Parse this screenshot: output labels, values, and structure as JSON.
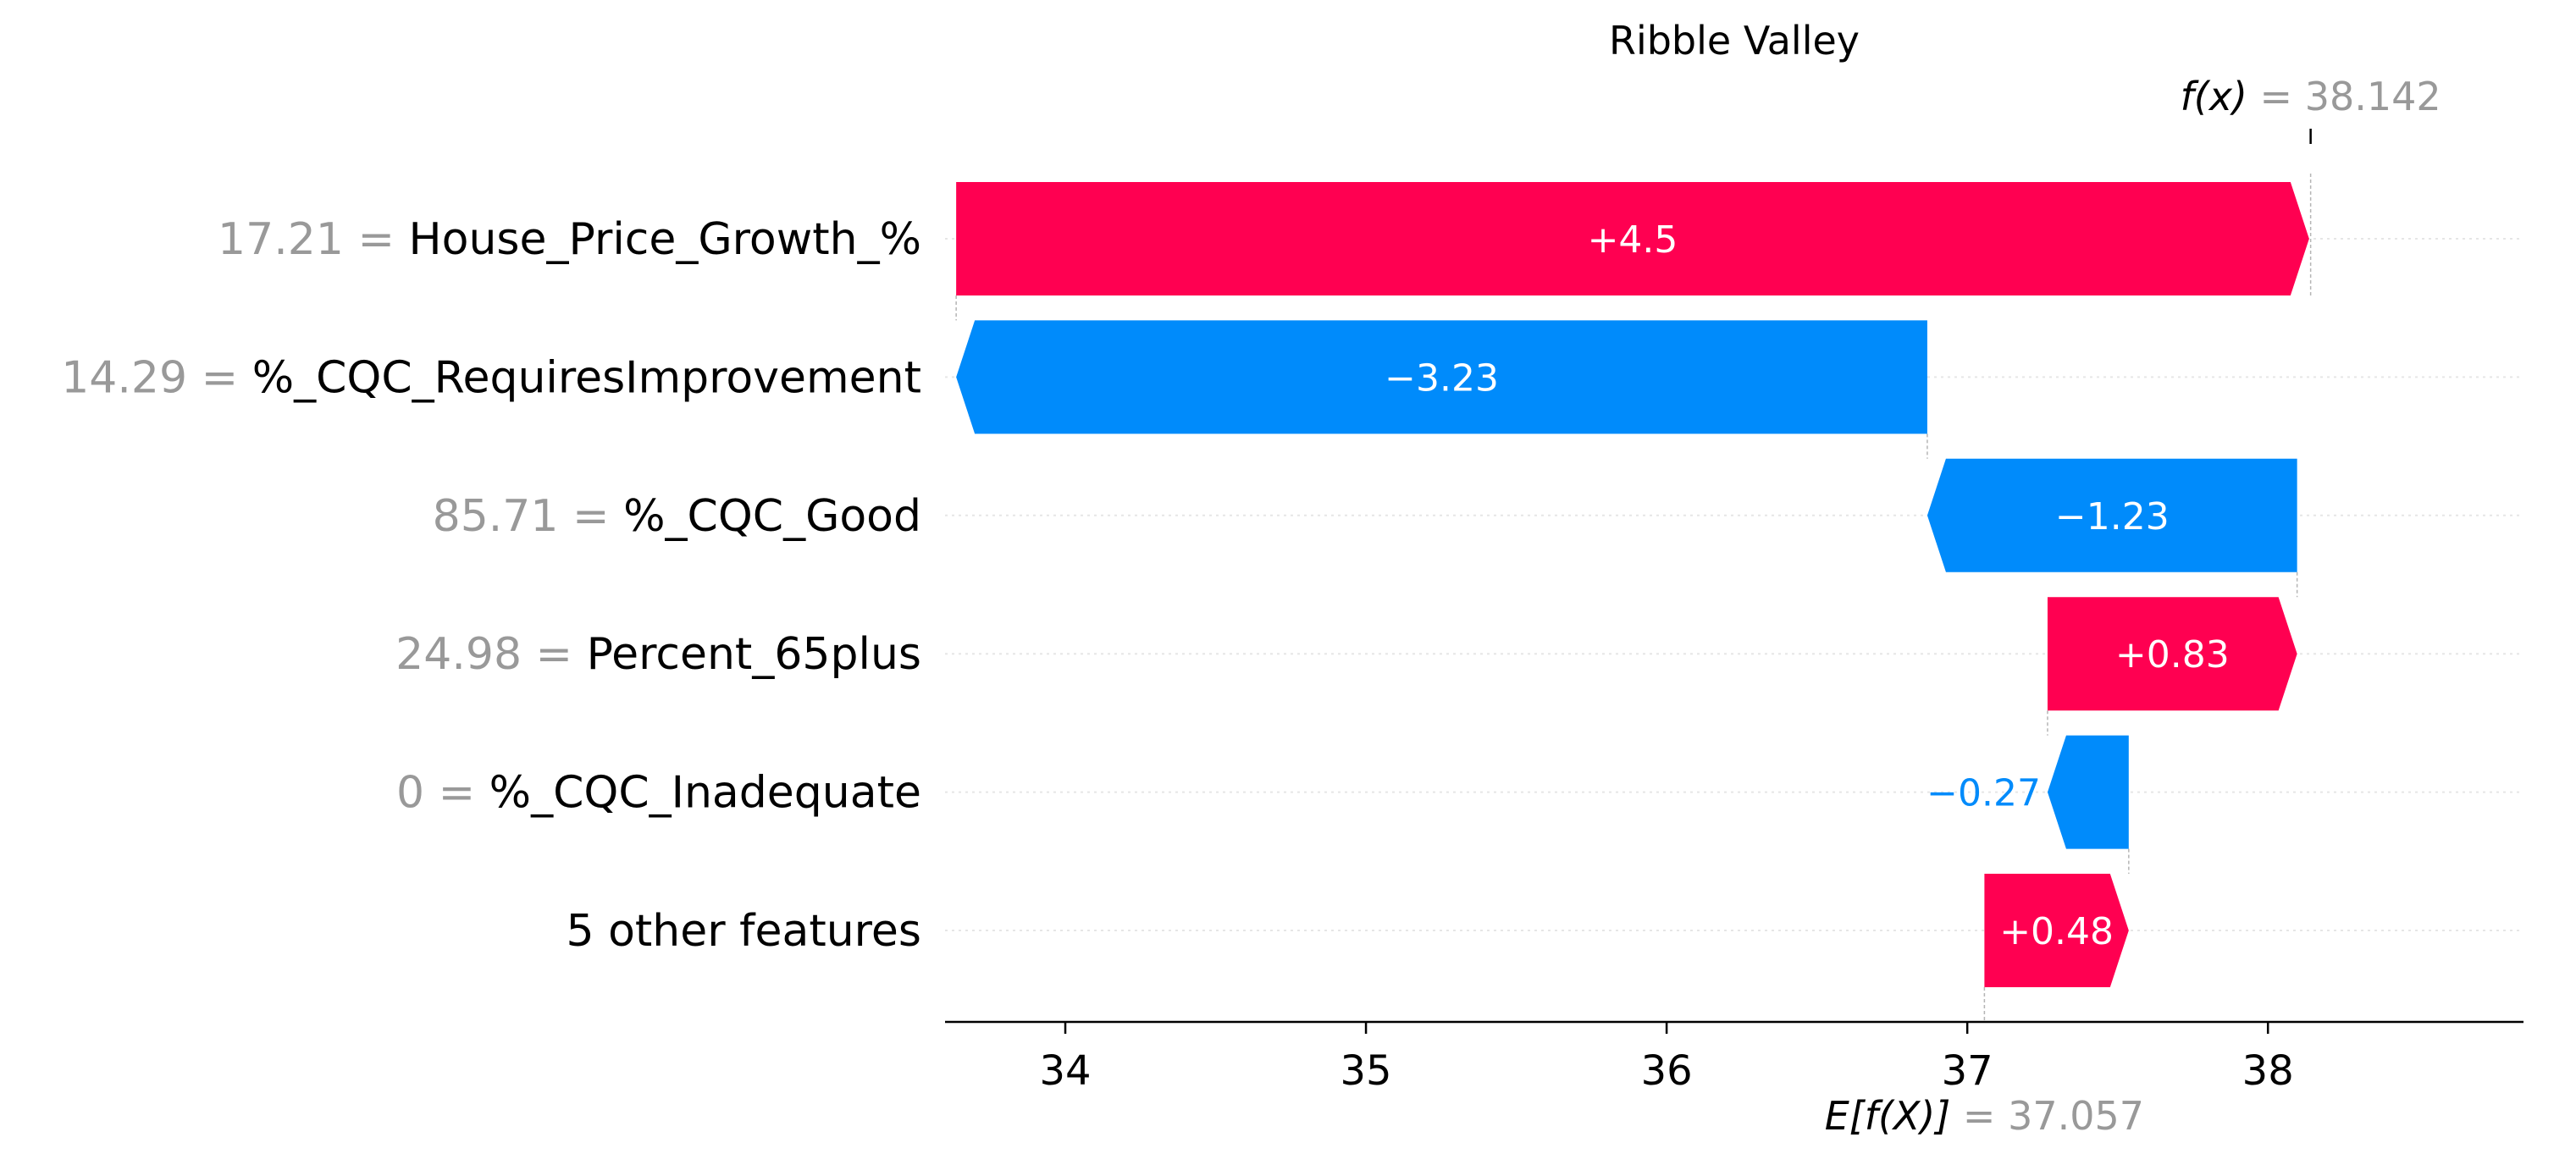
{
  "chart_data": {
    "type": "waterfall",
    "title": "Ribble Valley",
    "base_value": 37.057,
    "output_value": 38.142,
    "base_label": "E[f(X)]",
    "base_value_text": "= 37.057",
    "output_label": "f(x)",
    "output_value_text": "= 38.142",
    "xlim": [
      33.6,
      38.85
    ],
    "xticks": [
      34,
      35,
      36,
      37,
      38
    ],
    "features": [
      {
        "value": "17.21",
        "name": "House_Price_Growth_%",
        "contribution": 4.5,
        "label": "+4.5"
      },
      {
        "value": "14.29",
        "name": "%_CQC_RequiresImprovement",
        "contribution": -3.23,
        "label": "−3.23"
      },
      {
        "value": "85.71",
        "name": "%_CQC_Good",
        "contribution": -1.23,
        "label": "−1.23"
      },
      {
        "value": "24.98",
        "name": "Percent_65plus",
        "contribution": 0.83,
        "label": "+0.83"
      },
      {
        "value": "0",
        "name": "%_CQC_Inadequate",
        "contribution": -0.27,
        "label": "−0.27"
      },
      {
        "value": "",
        "name": "5 other features",
        "contribution": 0.48,
        "label": "+0.48"
      }
    ],
    "colors": {
      "positive": "#ff0051",
      "negative": "#008bfb",
      "value_text": "#999999",
      "name_text": "#000000"
    }
  }
}
